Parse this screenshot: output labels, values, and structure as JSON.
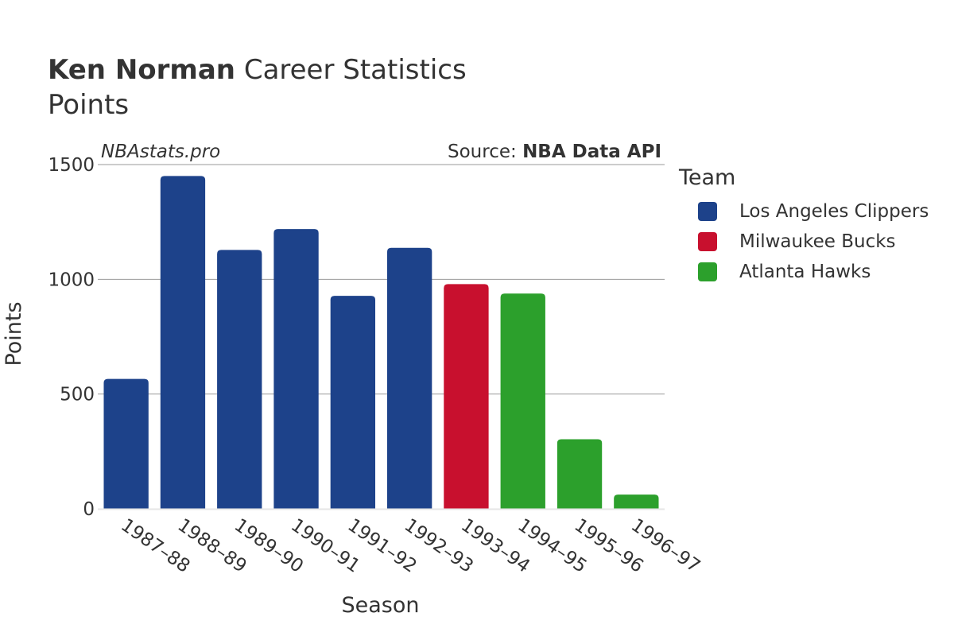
{
  "header": {
    "title_name": "Ken Norman",
    "title_rest": " Career Statistics",
    "subtitle": "Points"
  },
  "watermark": {
    "site": "NBAstats.pro",
    "source_prefix": "Source: ",
    "source_name": "NBA Data API"
  },
  "legend": {
    "title": "Team",
    "items": [
      {
        "label": "Los Angeles Clippers",
        "color": "#1d428a"
      },
      {
        "label": "Milwaukee Bucks",
        "color": "#c8102e"
      },
      {
        "label": "Atlanta Hawks",
        "color": "#2ca02c"
      }
    ]
  },
  "chart_data": {
    "type": "bar",
    "xlabel": "Season",
    "ylabel": "Points",
    "ylim": [
      0,
      1500
    ],
    "yticks": [
      0,
      500,
      1000,
      1500
    ],
    "grid": true,
    "legend_position": "right",
    "categories": [
      "1987–88",
      "1988–89",
      "1989–90",
      "1990–91",
      "1991–92",
      "1992–93",
      "1993–94",
      "1994–95",
      "1995–96",
      "1996–97"
    ],
    "values": [
      566,
      1450,
      1128,
      1219,
      928,
      1137,
      979,
      938,
      303,
      62
    ],
    "teams": [
      "Los Angeles Clippers",
      "Los Angeles Clippers",
      "Los Angeles Clippers",
      "Los Angeles Clippers",
      "Los Angeles Clippers",
      "Los Angeles Clippers",
      "Milwaukee Bucks",
      "Atlanta Hawks",
      "Atlanta Hawks",
      "Atlanta Hawks"
    ]
  }
}
